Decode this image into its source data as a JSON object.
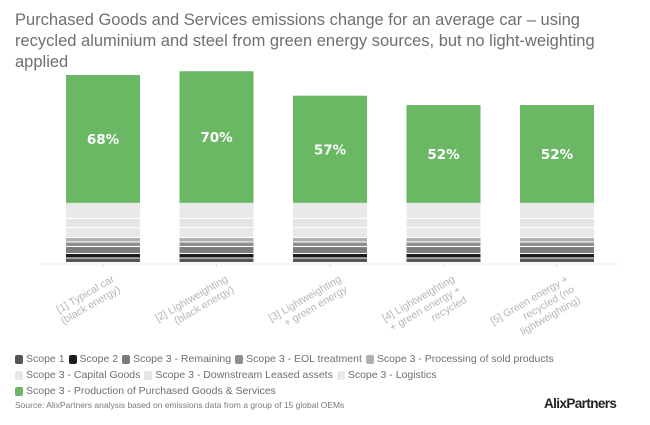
{
  "chart_data": {
    "type": "bar",
    "stacked": true,
    "title": "Purchased Goods and Services emissions change for an average car – using recycled aluminium and steel from green energy sources, but no light-weighting applied",
    "xlabel": "",
    "ylabel": "",
    "ylim": [
      0,
      110
    ],
    "grid": false,
    "legend_position": "bottom",
    "categories": [
      "[1] Typical car (black energy)",
      "[2] Lightweighting (black energy)",
      "[3] Lightweighting + green energy",
      "[4] Lightweighting + green energy + recycled",
      "[5] Green energy + recycled (no lightweighting)"
    ],
    "category_lines": [
      [
        "[1] Typical car",
        "(black energy)"
      ],
      [
        "[2] Lightweighting",
        "(black energy)"
      ],
      [
        "[3] Lightweighting",
        "+ green energy"
      ],
      [
        "[4] Lightweighting",
        "+ green energy +",
        "recycled"
      ],
      [
        "[5] Green energy +",
        "recycled (no",
        "lightweighting)"
      ]
    ],
    "series": [
      {
        "name": "Scope 1",
        "color": "#555555",
        "values": [
          2.4,
          2.4,
          2.4,
          2.4,
          2.4
        ]
      },
      {
        "name": "Scope 2",
        "color": "#1c1c1c",
        "values": [
          2.4,
          2.4,
          2.4,
          2.4,
          2.4
        ]
      },
      {
        "name": "Scope 3 - Remaining",
        "color": "#7c7c7c",
        "values": [
          3.7,
          3.7,
          3.7,
          3.7,
          3.7
        ]
      },
      {
        "name": "Scope 3 - EOL treatment",
        "color": "#8e8e8e",
        "values": [
          2.4,
          2.4,
          2.4,
          2.4,
          2.4
        ]
      },
      {
        "name": "Scope 3 - Processing of sold products",
        "color": "#b0b0b0",
        "values": [
          2.4,
          2.4,
          2.4,
          2.4,
          2.4
        ]
      },
      {
        "name": "Scope 3 - Capital Goods",
        "color": "#e8e8e8",
        "values": [
          5.3,
          5.3,
          5.3,
          5.3,
          5.3
        ]
      },
      {
        "name": "Scope 3 - Downstream Leased assets",
        "color": "#e5e5e5",
        "values": [
          4.8,
          4.8,
          4.8,
          4.8,
          4.8
        ]
      },
      {
        "name": "Scope 3 - Logistics",
        "color": "#e9e9e9",
        "values": [
          8.6,
          8.6,
          8.6,
          8.6,
          8.6
        ]
      },
      {
        "name": "Scope 3 - Production of Purchased Goods & Services",
        "color": "#6ab764",
        "values": [
          68,
          70,
          57,
          52,
          52
        ]
      }
    ],
    "data_labels": [
      "68%",
      "70%",
      "57%",
      "52%",
      "52%"
    ]
  },
  "source": "Source: AlixPartners analysis based on emissions data from a group of 15 global OEMs",
  "logo": "AlixPartners"
}
